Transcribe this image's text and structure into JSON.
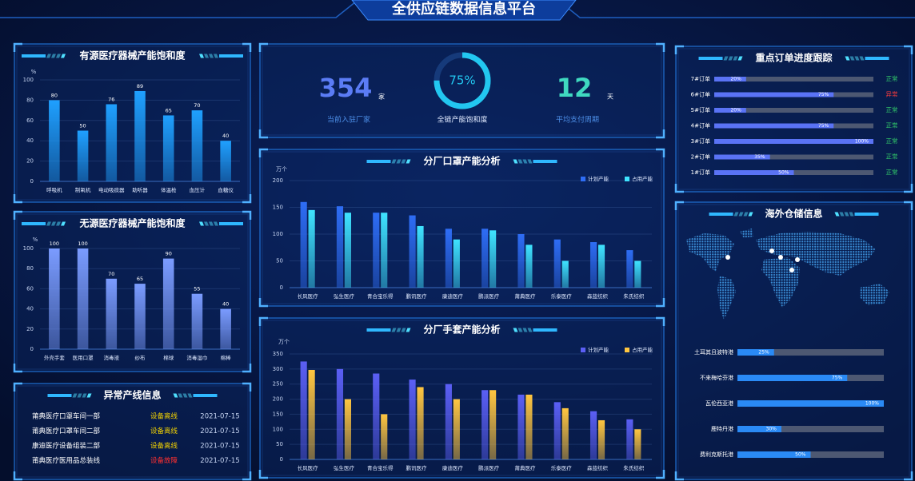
{
  "header": {
    "title": "全供应链数据信息平台"
  },
  "kpis": [
    {
      "value": 354,
      "unit": "家",
      "label": "当前入驻厂家",
      "color": "#5b7cf5"
    },
    {
      "value": 12,
      "unit": "天",
      "label": "平均支付周期",
      "color": "#3fd9c0"
    }
  ],
  "alerts": {
    "title": "异常产线信息",
    "rows": [
      [
        "莆典医疗口罩车间一部",
        "设备离线",
        "2021-07-15"
      ],
      [
        "莆典医疗口罩车间二部",
        "设备离线",
        "2021-07-15"
      ],
      [
        "康迪医疗设备组装二部",
        "设备离线",
        "2021-07-15"
      ],
      [
        "莆典医疗医用品总装线",
        "设备故障",
        "2021-07-15"
      ]
    ],
    "status_colors": [
      "#f5d400",
      "#f5d400",
      "#f5d400",
      "#ff3030"
    ]
  },
  "chart_data": [
    {
      "type": "bar",
      "title": "有源医疗器械产能饱和度",
      "y_unit": "%",
      "categories": [
        "呼吸机",
        "制氧机",
        "电动吸痰器",
        "助听器",
        "体温枪",
        "血压计",
        "血糖仪"
      ],
      "values": [
        80,
        50,
        76,
        89,
        65,
        70,
        40
      ],
      "value_labels": [
        "80",
        "50",
        "76",
        "89",
        "65",
        "70",
        "40"
      ],
      "color": "#1fa0ff",
      "ylim": [
        0,
        100
      ],
      "yticks": [
        0,
        20,
        40,
        60,
        80,
        100
      ],
      "grid": true
    },
    {
      "type": "bar",
      "title": "无源医疗器械产能饱和度",
      "y_unit": "%",
      "categories": [
        "外壳手套",
        "医用口罩",
        "消毒液",
        "纱布",
        "棉球",
        "消毒湿巾",
        "棉棒"
      ],
      "values": [
        100,
        100,
        70,
        65,
        90,
        55,
        40
      ],
      "value_labels": [
        "100",
        "100",
        "70",
        "65",
        "90",
        "55",
        "40"
      ],
      "color": "#7b9cff",
      "ylim": [
        0,
        100
      ],
      "yticks": [
        0,
        20,
        40,
        60,
        80,
        100
      ],
      "grid": true
    },
    {
      "type": "bar",
      "title": "分厂口罩产能分析",
      "y_unit": "万个",
      "categories": [
        "长风医疗",
        "弘生医疗",
        "青合宝乐得",
        "鹏讯医疗",
        "康迪医疗",
        "鹏派医疗",
        "莆典医疗",
        "乐泰医疗",
        "森蓝纺织",
        "朱氏纺织"
      ],
      "series": [
        {
          "name": "计划产能",
          "color": "#2e6df5",
          "values": [
            160,
            152,
            140,
            135,
            110,
            110,
            100,
            90,
            85,
            70
          ]
        },
        {
          "name": "占用产能",
          "color": "#3fe3ff",
          "values": [
            145,
            140,
            140,
            115,
            90,
            107,
            80,
            50,
            80,
            50
          ]
        }
      ],
      "ylim": [
        0,
        200
      ],
      "yticks": [
        0,
        50,
        100,
        150,
        200
      ],
      "grid": true
    },
    {
      "type": "bar",
      "title": "分厂手套产能分析",
      "y_unit": "万个",
      "categories": [
        "长风医疗",
        "弘生医疗",
        "青合宝乐得",
        "鹏讯医疗",
        "康迪医疗",
        "鹏派医疗",
        "莆典医疗",
        "乐泰医疗",
        "森蓝纺织",
        "朱氏纺织"
      ],
      "series": [
        {
          "name": "计划产能",
          "color": "#5b5ff5",
          "values": [
            325,
            300,
            285,
            265,
            250,
            230,
            215,
            190,
            160,
            133
          ]
        },
        {
          "name": "占用产能",
          "color": "#ffc640",
          "values": [
            297,
            200,
            150,
            240,
            200,
            230,
            215,
            170,
            130,
            100
          ]
        }
      ],
      "ylim": [
        0,
        350
      ],
      "yticks": [
        0,
        50,
        100,
        150,
        200,
        250,
        300,
        350
      ],
      "grid": true
    },
    {
      "type": "ring",
      "title": "全链产能饱和度",
      "value": 75,
      "value_label": "75%",
      "ylim": [
        0,
        100
      ],
      "color": "#22c7f0"
    },
    {
      "type": "progress",
      "title": "重点订单进度跟踪",
      "categories": [
        "7#订单",
        "6#订单",
        "5#订单",
        "4#订单",
        "3#订单",
        "2#订单",
        "1#订单"
      ],
      "values": [
        20,
        75,
        20,
        75,
        100,
        35,
        50
      ],
      "value_labels": [
        "20%",
        "75%",
        "20%",
        "75%",
        "100%",
        "35%",
        "50%"
      ],
      "statuses": [
        "正常",
        "异常",
        "正常",
        "正常",
        "正常",
        "正常",
        "正常"
      ],
      "status_colors": [
        "#33d16b",
        "#ff3b3b",
        "#33d16b",
        "#33d16b",
        "#33d16b",
        "#33d16b",
        "#33d16b"
      ],
      "color": "#5a73f5",
      "xlim": [
        0,
        100
      ]
    },
    {
      "type": "progress",
      "title": "海外仓储信息",
      "categories": [
        "土耳其且波特港",
        "不来梅哈芬港",
        "瓦伦西亚港",
        "鹿特丹港",
        "费利克斯托港"
      ],
      "values": [
        25,
        75,
        100,
        30,
        50
      ],
      "value_labels": [
        "25%",
        "75%",
        "100%",
        "30%",
        "50%"
      ],
      "color": "#2a8af5",
      "xlim": [
        0,
        100
      ]
    }
  ]
}
